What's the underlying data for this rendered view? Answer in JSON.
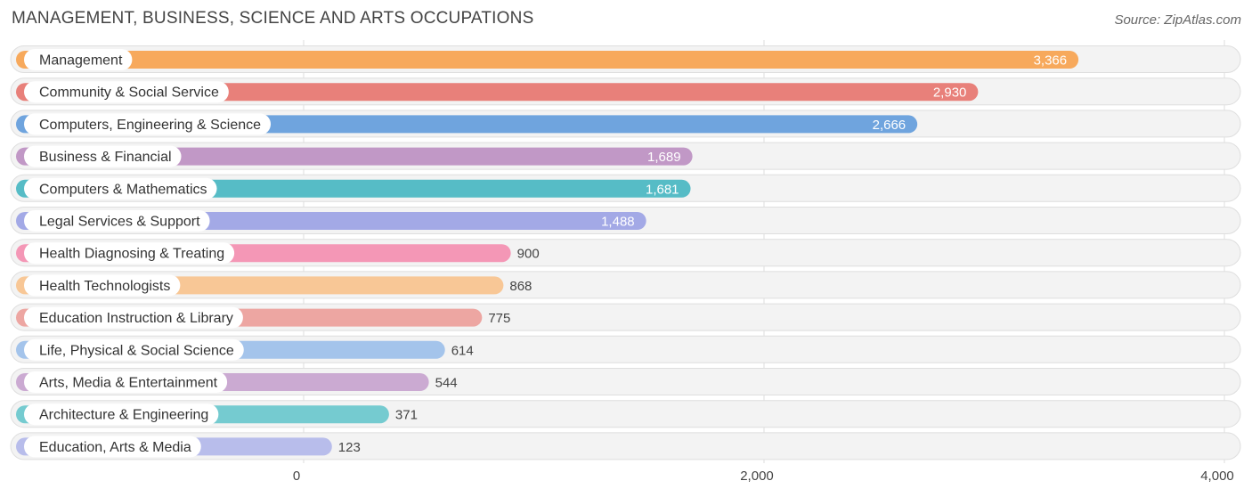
{
  "header": {
    "title": "MANAGEMENT, BUSINESS, SCIENCE AND ARTS OCCUPATIONS",
    "source": "Source: ZipAtlas.com"
  },
  "chart_data": {
    "type": "bar",
    "orientation": "horizontal",
    "title": "MANAGEMENT, BUSINESS, SCIENCE AND ARTS OCCUPATIONS",
    "xlim": [
      0,
      4000
    ],
    "x_ticks": [
      {
        "value": 0,
        "label": "0"
      },
      {
        "value": 2000,
        "label": "2,000"
      },
      {
        "value": 4000,
        "label": "4,000"
      }
    ],
    "grid": true,
    "categories": [
      "Management",
      "Community & Social Service",
      "Computers, Engineering & Science",
      "Business & Financial",
      "Computers & Mathematics",
      "Legal Services & Support",
      "Health Diagnosing & Treating",
      "Health Technologists",
      "Education Instruction & Library",
      "Life, Physical & Social Science",
      "Arts, Media & Entertainment",
      "Architecture & Engineering",
      "Education, Arts & Media"
    ],
    "values": [
      3366,
      2930,
      2666,
      1689,
      1681,
      1488,
      900,
      868,
      775,
      614,
      544,
      371,
      123
    ],
    "value_labels": [
      "3,366",
      "2,930",
      "2,666",
      "1,689",
      "1,681",
      "1,488",
      "900",
      "868",
      "775",
      "614",
      "544",
      "371",
      "123"
    ],
    "colors": [
      "#f7a95c",
      "#e8807a",
      "#6fa4de",
      "#c198c6",
      "#56bcc6",
      "#a3a9e6",
      "#f497b6",
      "#f8c796",
      "#eda6a2",
      "#a4c4eb",
      "#cbaad2",
      "#75cbd0",
      "#b8bdeb"
    ]
  }
}
